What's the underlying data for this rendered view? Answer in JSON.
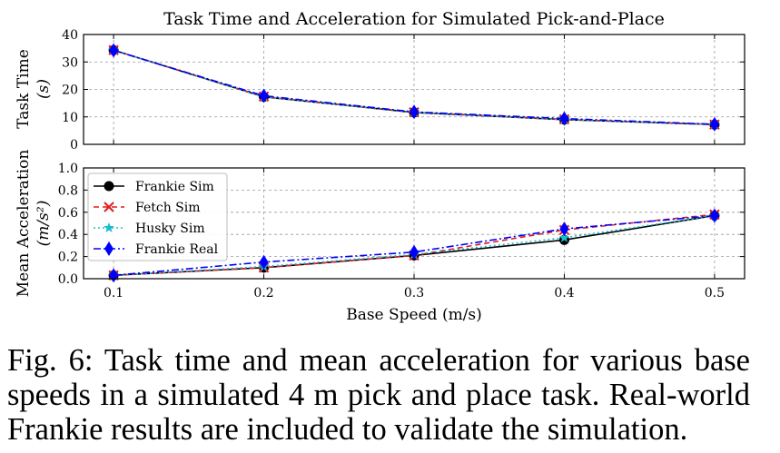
{
  "chart_data": [
    {
      "type": "line",
      "title": "Task Time and Acceleration for Simulated Pick-and-Place",
      "xlabel": "",
      "ylabel_line1": "Task Time",
      "ylabel_line2": "(s)",
      "x": [
        0.1,
        0.2,
        0.3,
        0.4,
        0.5
      ],
      "xlim": [
        0.08,
        0.52
      ],
      "ylim": [
        0,
        40
      ],
      "yticks": [
        "0",
        "10",
        "20",
        "30",
        "40"
      ],
      "grid": true,
      "series": [
        {
          "name": "Frankie Sim",
          "values": [
            34.3,
            17.3,
            11.6,
            9.0,
            7.2
          ],
          "color": "#000000",
          "dash": "",
          "marker": "circle"
        },
        {
          "name": "Fetch Sim",
          "values": [
            34.3,
            17.4,
            11.7,
            9.1,
            7.2
          ],
          "color": "#e41a1c",
          "dash": "6,4",
          "marker": "x"
        },
        {
          "name": "Husky Sim",
          "values": [
            34.3,
            17.3,
            11.6,
            9.0,
            7.2
          ],
          "color": "#17becf",
          "dash": "2,3",
          "marker": "star"
        },
        {
          "name": "Frankie Real",
          "values": [
            34.2,
            17.7,
            11.8,
            9.4,
            7.3
          ],
          "color": "#0000ff",
          "dash": "8,3,2,3",
          "marker": "diamond"
        }
      ]
    },
    {
      "type": "line",
      "title": "",
      "xlabel": "Base Speed (m/s)",
      "ylabel_line1": "Mean Acceleration",
      "ylabel_line2": "(m/s²)",
      "x": [
        0.1,
        0.2,
        0.3,
        0.4,
        0.5
      ],
      "xticks": [
        "0.1",
        "0.2",
        "0.3",
        "0.4",
        "0.5"
      ],
      "xlim": [
        0.08,
        0.52
      ],
      "ylim": [
        0,
        1.0
      ],
      "yticks": [
        "0.0",
        "0.2",
        "0.4",
        "0.6",
        "0.8",
        "1.0"
      ],
      "grid": true,
      "legend_position": "upper-left",
      "series": [
        {
          "name": "Frankie Sim",
          "values": [
            0.03,
            0.1,
            0.21,
            0.35,
            0.57
          ],
          "color": "#000000",
          "dash": "",
          "marker": "circle"
        },
        {
          "name": "Fetch Sim",
          "values": [
            0.03,
            0.1,
            0.21,
            0.44,
            0.58
          ],
          "color": "#e41a1c",
          "dash": "6,4",
          "marker": "x"
        },
        {
          "name": "Husky Sim",
          "values": [
            0.03,
            0.11,
            0.22,
            0.37,
            0.57
          ],
          "color": "#17becf",
          "dash": "2,3",
          "marker": "star"
        },
        {
          "name": "Frankie Real",
          "values": [
            0.03,
            0.15,
            0.24,
            0.45,
            0.57
          ],
          "color": "#0000ff",
          "dash": "8,3,2,3",
          "marker": "diamond"
        }
      ]
    }
  ],
  "caption": {
    "label": "Fig. 6:",
    "text": "Task time and mean acceleration for various base speeds in a simulated 4 m pick and place task. Real-world Frankie results are included to validate the simulation."
  }
}
